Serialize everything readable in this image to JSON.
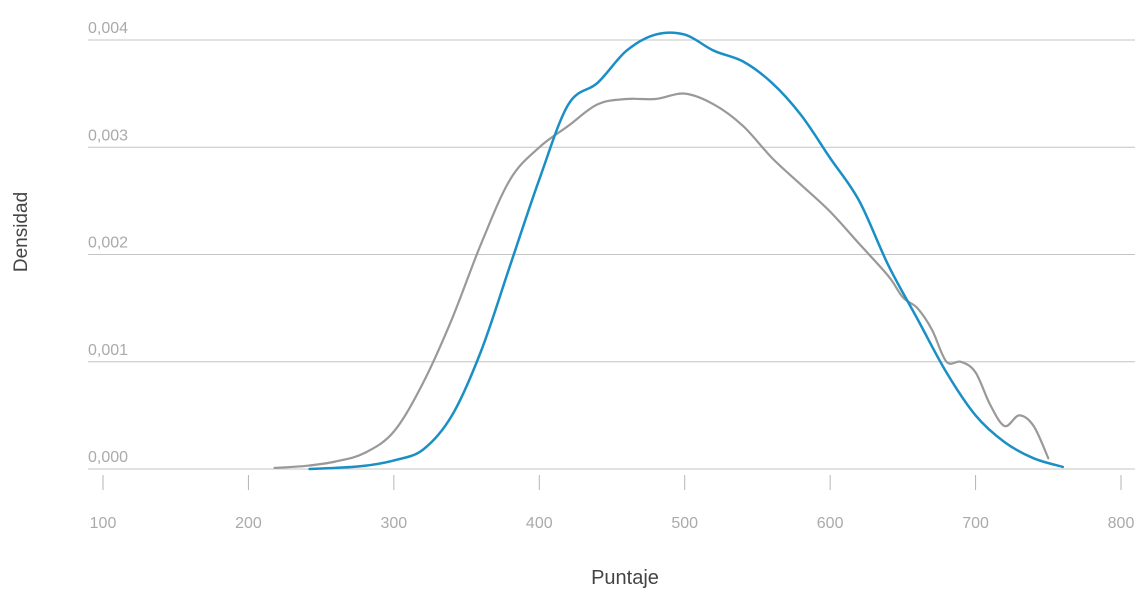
{
  "chart_data": {
    "type": "line",
    "title": "",
    "xlabel": "Puntaje",
    "ylabel": "Densidad",
    "xlim": [
      0,
      810
    ],
    "ylim": [
      0,
      0.004
    ],
    "xticks": [
      100,
      200,
      300,
      400,
      500,
      600,
      700,
      800
    ],
    "yticks": [
      0.0,
      0.001,
      0.002,
      0.003,
      0.004
    ],
    "ytick_labels": [
      "0,000",
      "0,001",
      "0,002",
      "0,003",
      "0,004"
    ],
    "grid": "horizontal",
    "legend": "none",
    "series": [
      {
        "color": "#999999",
        "x": [
          218,
          240,
          260,
          280,
          300,
          320,
          340,
          360,
          380,
          400,
          420,
          440,
          460,
          480,
          500,
          520,
          540,
          560,
          580,
          600,
          620,
          640,
          650,
          660,
          670,
          680,
          690,
          700,
          710,
          720,
          730,
          740,
          750
        ],
        "y": [
          1e-05,
          3e-05,
          7e-05,
          0.00015,
          0.00035,
          0.0008,
          0.0014,
          0.0021,
          0.0027,
          0.003,
          0.0032,
          0.0034,
          0.00345,
          0.00345,
          0.0035,
          0.0034,
          0.0032,
          0.0029,
          0.00265,
          0.0024,
          0.0021,
          0.0018,
          0.0016,
          0.0015,
          0.0013,
          0.001,
          0.001,
          0.0009,
          0.0006,
          0.0004,
          0.0005,
          0.0004,
          0.0001
        ]
      },
      {
        "color": "#1a8fc6",
        "x": [
          242,
          260,
          280,
          300,
          320,
          340,
          360,
          380,
          400,
          420,
          440,
          460,
          480,
          500,
          520,
          540,
          560,
          580,
          600,
          620,
          640,
          660,
          680,
          700,
          720,
          740,
          760
        ],
        "y": [
          0.0,
          1e-05,
          3e-05,
          8e-05,
          0.00018,
          0.0005,
          0.0011,
          0.0019,
          0.0027,
          0.0034,
          0.0036,
          0.0039,
          0.00405,
          0.00405,
          0.0039,
          0.0038,
          0.0036,
          0.0033,
          0.0029,
          0.0025,
          0.0019,
          0.0014,
          0.0009,
          0.0005,
          0.00025,
          0.0001,
          2e-05
        ]
      }
    ]
  }
}
